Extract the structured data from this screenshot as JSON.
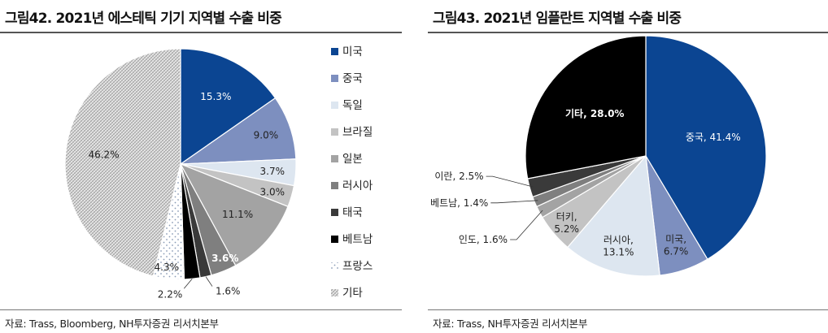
{
  "left": {
    "title": "그림42. 2021년 에스테틱 기기 지역별 수출 비중",
    "source": "자료: Trass, Bloomberg, NH투자증권 리서치본부"
  },
  "right": {
    "title": "그림43. 2021년 임플란트 지역별 수출 비중",
    "source": "자료: Trass, NH투자증권 리서치본부"
  },
  "chart_data": [
    {
      "type": "pie",
      "title": "그림42. 2021년 에스테틱 기기 지역별 수출 비중",
      "start": "12 o'clock, clockwise",
      "legend_position": "right",
      "categories": [
        "미국",
        "중국",
        "독일",
        "브라질",
        "일본",
        "러시아",
        "태국",
        "베트남",
        "프랑스",
        "기타"
      ],
      "values": [
        15.3,
        9.0,
        3.7,
        3.0,
        11.1,
        3.6,
        1.6,
        2.2,
        4.3,
        46.2
      ],
      "labels": [
        "15.3%",
        "9.0%",
        "3.7%",
        "3.0%",
        "11.1%",
        "3.6%",
        "1.6%",
        "2.2%",
        "4.3%",
        "46.2%"
      ],
      "colors": [
        "#0b4592",
        "#7d8fbf",
        "#dde6f0",
        "#c3c3c3",
        "#a3a3a3",
        "#7f7f7f",
        "#3a3a3a",
        "#000000",
        "dots",
        "hatch"
      ]
    },
    {
      "type": "pie",
      "title": "그림43. 2021년 임플란트 지역별 수출 비중",
      "start": "12 o'clock, clockwise",
      "categories": [
        "중국",
        "미국",
        "러시아",
        "터키",
        "인도",
        "베트남",
        "이란",
        "기타"
      ],
      "values": [
        41.4,
        6.7,
        13.1,
        5.2,
        1.6,
        1.4,
        2.5,
        28.0
      ],
      "labels": [
        "중국, 41.4%",
        "미국, 6.7%",
        "러시아, 13.1%",
        "터키, 5.2%",
        "인도, 1.6%",
        "베트남, 1.4%",
        "이란, 2.5%",
        "기타, 28.0%"
      ],
      "colors": [
        "#0b4592",
        "#7d8fbf",
        "#dde6f0",
        "#c3c3c3",
        "#a3a3a3",
        "#7f7f7f",
        "#3a3a3a",
        "#000000"
      ]
    }
  ]
}
